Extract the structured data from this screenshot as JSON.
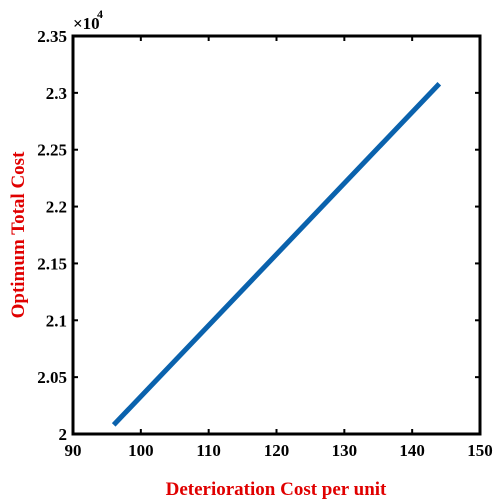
{
  "chart_data": {
    "type": "line",
    "title": "",
    "xlabel": "Deterioration Cost per unit",
    "ylabel": "Optimum Total Cost",
    "xlim": [
      90,
      150
    ],
    "ylim": [
      20000,
      23500
    ],
    "xticks": [
      90,
      100,
      110,
      120,
      130,
      140,
      150
    ],
    "yticks": [
      20000,
      20500,
      21000,
      21500,
      22000,
      22500,
      23000,
      23500
    ],
    "ytick_labels": [
      "2",
      "2.05",
      "2.1",
      "2.15",
      "2.2",
      "2.25",
      "2.3",
      "2.35"
    ],
    "y_exponent_base": "×10",
    "y_exponent_power": "4",
    "grid": false,
    "series": [
      {
        "x": [
          96,
          144
        ],
        "y": [
          20080,
          23080
        ],
        "color": "#0a62ad"
      }
    ],
    "label_color": "#e00000"
  }
}
